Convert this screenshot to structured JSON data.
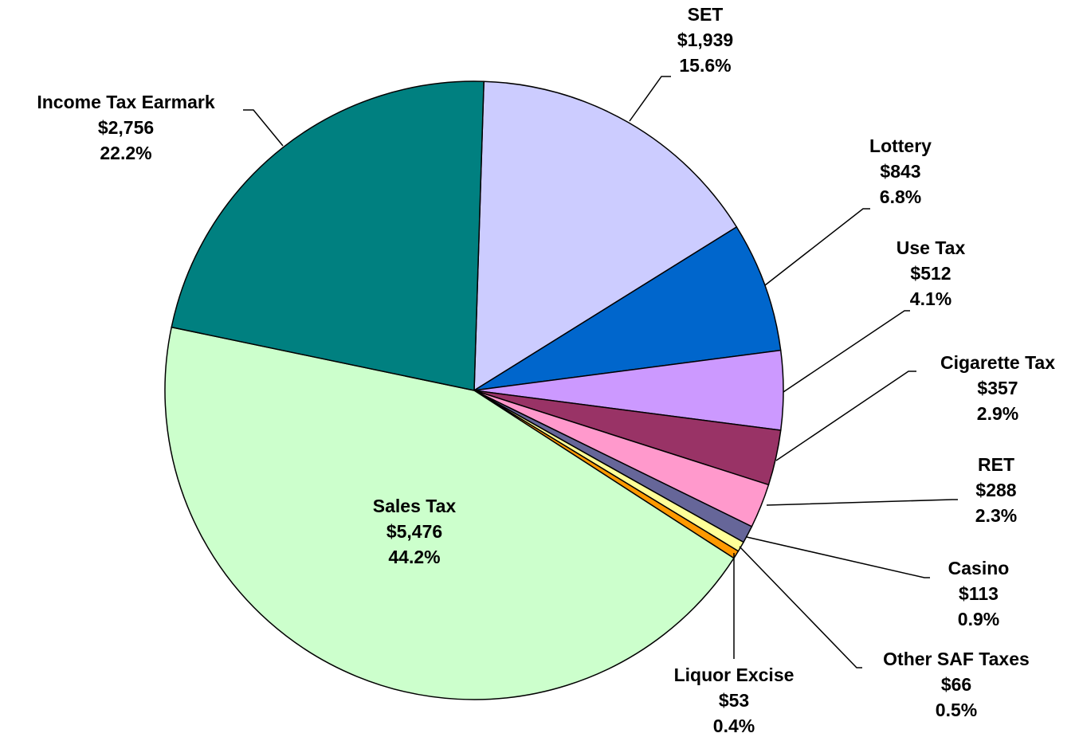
{
  "chart_data": {
    "type": "pie",
    "categories": [
      "SET",
      "Lottery",
      "Use Tax",
      "Cigarette Tax",
      "RET",
      "Casino",
      "Other SAF Taxes",
      "Liquor Excise",
      "Sales Tax",
      "Income Tax Earmark"
    ],
    "values": [
      1939,
      843,
      512,
      357,
      288,
      113,
      66,
      53,
      5476,
      2756
    ],
    "value_labels": [
      "$1,939",
      "$843",
      "$512",
      "$357",
      "$288",
      "$113",
      "$66",
      "$53",
      "$5,476",
      "$2,756"
    ],
    "percents": [
      15.6,
      6.8,
      4.1,
      2.9,
      2.3,
      0.9,
      0.5,
      0.4,
      44.2,
      22.2
    ],
    "percent_labels": [
      "15.6%",
      "6.8%",
      "4.1%",
      "2.9%",
      "2.3%",
      "0.9%",
      "0.5%",
      "0.4%",
      "44.2%",
      "22.2%"
    ],
    "colors": [
      "#ccccff",
      "#0066cc",
      "#cc99ff",
      "#993366",
      "#ff99cc",
      "#666699",
      "#ffff99",
      "#ff9900",
      "#ccffcc",
      "#008080"
    ]
  }
}
